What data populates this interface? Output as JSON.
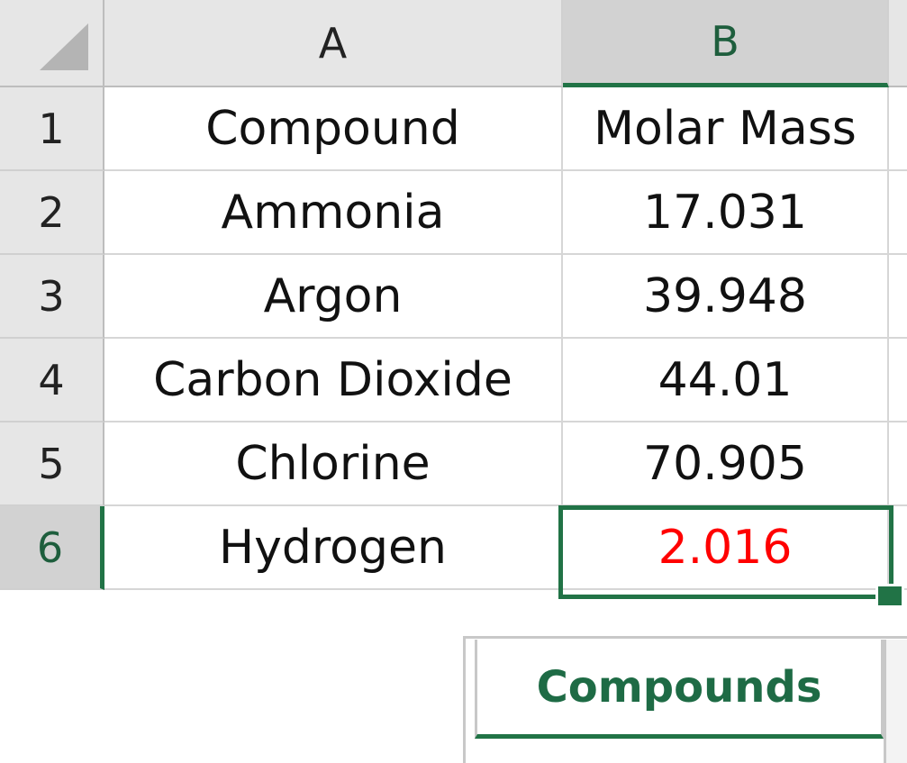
{
  "spreadsheet": {
    "columns": [
      "A",
      "B"
    ],
    "selected_column": "B",
    "rows": [
      {
        "row": "1",
        "a": "Compound",
        "b": "Molar Mass"
      },
      {
        "row": "2",
        "a": "Ammonia",
        "b": "17.031"
      },
      {
        "row": "3",
        "a": "Argon",
        "b": "39.948"
      },
      {
        "row": "4",
        "a": "Carbon Dioxide",
        "b": "44.01"
      },
      {
        "row": "5",
        "a": "Chlorine",
        "b": "70.905"
      },
      {
        "row": "6",
        "a": "Hydrogen",
        "b": "2.016"
      }
    ],
    "selected_row": "6",
    "active_cell": "B6",
    "active_cell_text_color": "#ff0000"
  },
  "sheet_tabs": {
    "active_tab": "Compounds"
  },
  "colors": {
    "accent": "#217346",
    "header_bg": "#e6e6e6",
    "selected_header_bg": "#d2d2d2"
  }
}
